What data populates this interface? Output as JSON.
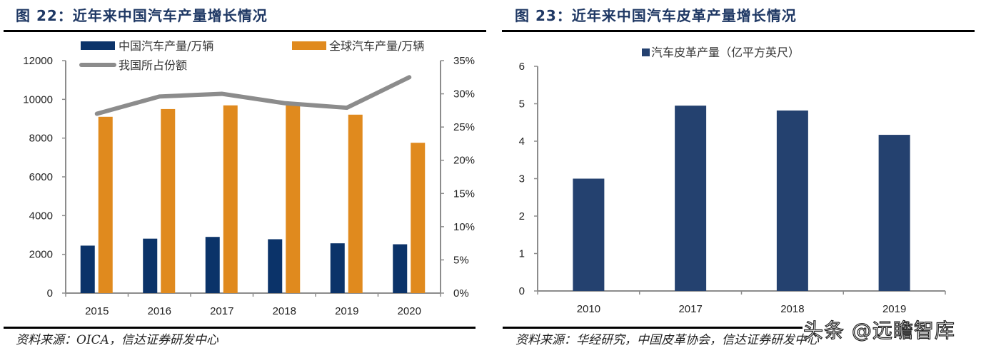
{
  "left": {
    "title": "图 22：近年来中国汽车产量增长情况",
    "source": "资料来源：OICA，信达证券研发中心"
  },
  "right": {
    "title": "图 23：近年来中国汽车皮革产量增长情况",
    "source": "资料来源：华经研究，中国皮革协会，信达证券研发中心"
  },
  "watermark": "头条 @远瞻智库",
  "colors": {
    "china": "#0b3369",
    "global": "#e08a1e",
    "share": "#8c8c8c",
    "leather": "#24416f",
    "title": "#1f3864"
  },
  "chart_data": [
    {
      "type": "bar",
      "title": "近年来中国汽车产量增长情况",
      "categories": [
        "2015",
        "2016",
        "2017",
        "2018",
        "2019",
        "2020"
      ],
      "series": [
        {
          "name": "中国汽车产量/万辆",
          "type": "bar",
          "axis": "left",
          "values": [
            2450,
            2810,
            2900,
            2780,
            2570,
            2520
          ]
        },
        {
          "name": "全球汽车产量/万辆",
          "type": "bar",
          "axis": "left",
          "values": [
            9100,
            9500,
            9690,
            9730,
            9210,
            7760
          ]
        },
        {
          "name": "我国所占份额",
          "type": "line",
          "axis": "right",
          "values": [
            27.0,
            29.6,
            30.0,
            28.6,
            27.9,
            32.5
          ]
        }
      ],
      "y_left": {
        "ylim": [
          0,
          12000
        ],
        "ticks": [
          "0",
          "2000",
          "4000",
          "6000",
          "8000",
          "10000",
          "12000"
        ]
      },
      "y_right": {
        "ylim": [
          0,
          35
        ],
        "ticks": [
          "0%",
          "5%",
          "10%",
          "15%",
          "20%",
          "25%",
          "30%",
          "35%"
        ]
      },
      "xlabel": "",
      "ylabel": "",
      "legend": "top",
      "grid": false
    },
    {
      "type": "bar",
      "title": "近年来中国汽车皮革产量增长情况",
      "categories": [
        "2010",
        "2017",
        "2018",
        "2019"
      ],
      "series": [
        {
          "name": "汽车皮革产量（亿平方英尺）",
          "values": [
            3.0,
            4.95,
            4.82,
            4.17
          ]
        }
      ],
      "ylim": [
        0,
        6
      ],
      "yticks": [
        "0",
        "1",
        "2",
        "3",
        "4",
        "5",
        "6"
      ],
      "xlabel": "",
      "ylabel": "",
      "legend": "top",
      "grid": false
    }
  ]
}
